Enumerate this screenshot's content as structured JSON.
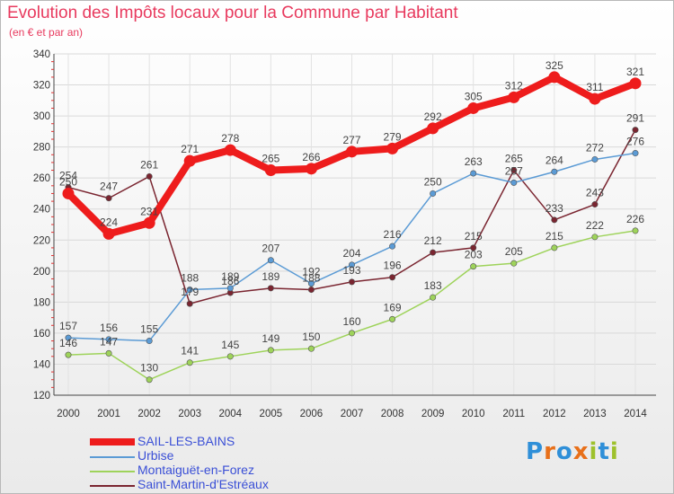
{
  "title": "Evolution des Impôts locaux pour la Commune par Habitant",
  "subtitle": "(en € et par an)",
  "logo": {
    "text": "Proxiti",
    "letter_colors": [
      "#2f8fd8",
      "#e8701a",
      "#2f8fd8",
      "#e8701a",
      "#9ec12c",
      "#2f8fd8",
      "#9ec12c"
    ]
  },
  "chart_data": {
    "type": "line",
    "title": "Evolution des Impôts locaux pour la Commune par Habitant",
    "subtitle": "(en € et par an)",
    "xlabel": "",
    "ylabel": "",
    "x": [
      "2000",
      "2001",
      "2002",
      "2003",
      "2004",
      "2005",
      "2006",
      "2007",
      "2008",
      "2009",
      "2010",
      "2011",
      "2012",
      "2013",
      "2014"
    ],
    "ylim": [
      120,
      340
    ],
    "yticks": [
      120,
      140,
      160,
      180,
      200,
      220,
      240,
      260,
      280,
      300,
      320,
      340
    ],
    "legend_position": "bottom-left",
    "series": [
      {
        "name": "Saint-Martin-d'Estréaux",
        "color": "#7a2530",
        "values": [
          254,
          247,
          261,
          179,
          186,
          189,
          188,
          193,
          196,
          212,
          215,
          265,
          233,
          243,
          291
        ]
      },
      {
        "name": "Montaiguët-en-Forez",
        "color": "#9ed35a",
        "values": [
          146,
          147,
          130,
          141,
          145,
          149,
          150,
          160,
          169,
          183,
          203,
          205,
          215,
          222,
          226
        ]
      },
      {
        "name": "Urbise",
        "color": "#5b9bd5",
        "values": [
          157,
          156,
          155,
          188,
          189,
          207,
          192,
          204,
          216,
          250,
          263,
          257,
          264,
          272,
          276
        ]
      },
      {
        "name": "SAIL-LES-BAINS",
        "color": "#ee1c1c",
        "values": [
          250,
          224,
          231,
          271,
          278,
          265,
          266,
          277,
          279,
          292,
          305,
          312,
          325,
          311,
          321
        ]
      }
    ],
    "legend_order": [
      "SAIL-LES-BAINS",
      "Urbise",
      "Montaiguët-en-Forez",
      "Saint-Martin-d'Estréaux"
    ]
  }
}
